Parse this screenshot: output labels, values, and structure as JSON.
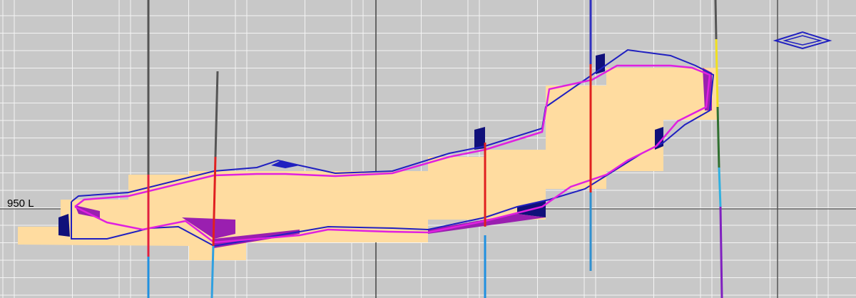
{
  "level_label": "950 L"
}
